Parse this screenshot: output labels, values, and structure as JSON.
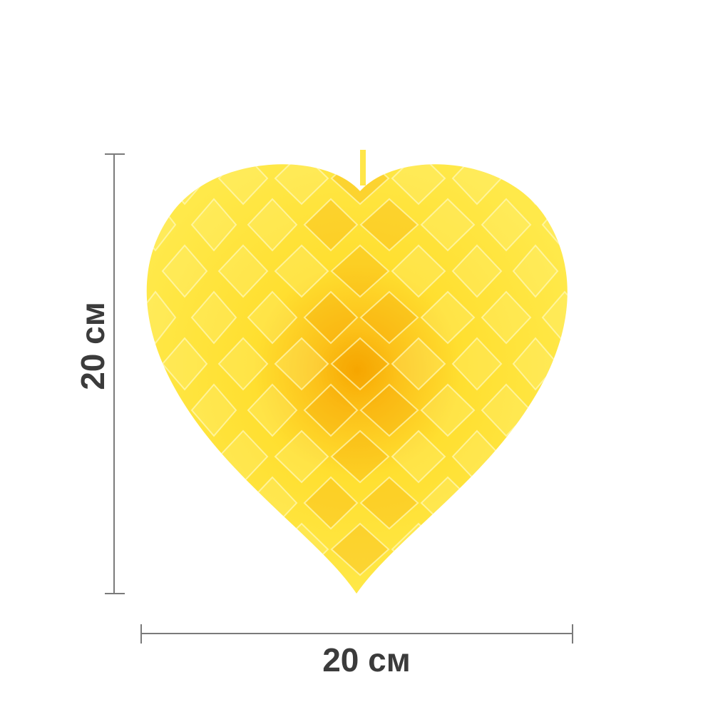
{
  "product": {
    "name_icon": "honeycomb-paper-heart",
    "color": "#ffe433",
    "shade_color": "#f5a300"
  },
  "dimensions": {
    "width_label": "20 см",
    "height_label": "20 см",
    "line_color": "#7a7a7a",
    "text_color": "#3b3b3b"
  }
}
